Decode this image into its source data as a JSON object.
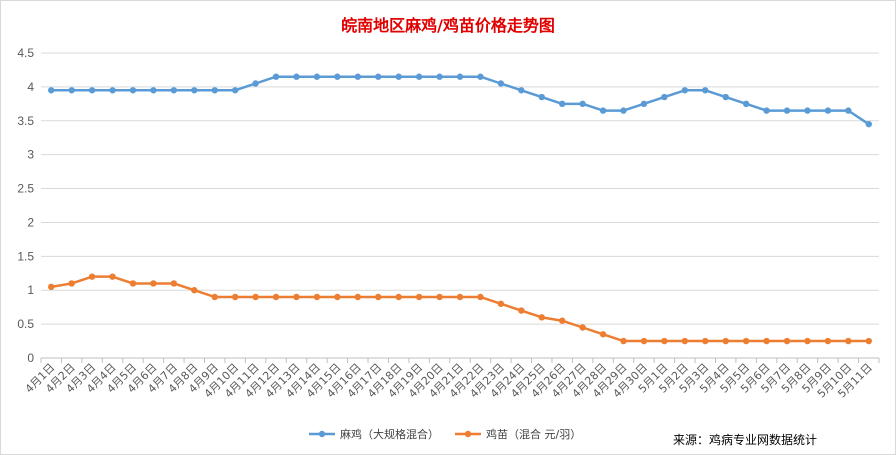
{
  "chart_data": {
    "type": "line",
    "title": "皖南地区麻鸡/鸡苗价格走势图",
    "source": "来源：鸡病专业网数据统计",
    "ylim": [
      0,
      4.5
    ],
    "yticks": [
      "0",
      "0.5",
      "1",
      "1.5",
      "2",
      "2.5",
      "3",
      "3.5",
      "4",
      "4.5"
    ],
    "grid": true,
    "legend_position": "bottom",
    "categories": [
      "4月1日",
      "4月2日",
      "4月3日",
      "4月4日",
      "4月5日",
      "4月6日",
      "4月7日",
      "4月8日",
      "4月9日",
      "4月10日",
      "4月11日",
      "4月12日",
      "4月13日",
      "4月14日",
      "4月15日",
      "4月16日",
      "4月17日",
      "4月18日",
      "4月19日",
      "4月20日",
      "4月21日",
      "4月22日",
      "4月23日",
      "4月24日",
      "4月25日",
      "4月26日",
      "4月27日",
      "4月28日",
      "4月29日",
      "4月30日",
      "5月1日",
      "5月2日",
      "5月3日",
      "5月4日",
      "5月5日",
      "5月6日",
      "5月7日",
      "5月8日",
      "5月9日",
      "5月10日",
      "5月11日"
    ],
    "series": [
      {
        "name": "麻鸡（大规格混合）",
        "color": "#5b9bd5",
        "values": [
          3.95,
          3.95,
          3.95,
          3.95,
          3.95,
          3.95,
          3.95,
          3.95,
          3.95,
          3.95,
          4.05,
          4.15,
          4.15,
          4.15,
          4.15,
          4.15,
          4.15,
          4.15,
          4.15,
          4.15,
          4.15,
          4.15,
          4.05,
          3.95,
          3.85,
          3.75,
          3.75,
          3.65,
          3.65,
          3.75,
          3.85,
          3.95,
          3.95,
          3.85,
          3.75,
          3.65,
          3.65,
          3.65,
          3.65,
          3.65,
          3.45
        ]
      },
      {
        "name": "鸡苗（混合 元/羽）",
        "color": "#ed7d31",
        "values": [
          1.05,
          1.1,
          1.2,
          1.2,
          1.1,
          1.1,
          1.1,
          1.0,
          0.9,
          0.9,
          0.9,
          0.9,
          0.9,
          0.9,
          0.9,
          0.9,
          0.9,
          0.9,
          0.9,
          0.9,
          0.9,
          0.9,
          0.8,
          0.7,
          0.6,
          0.55,
          0.45,
          0.35,
          0.25,
          0.25,
          0.25,
          0.25,
          0.25,
          0.25,
          0.25,
          0.25,
          0.25,
          0.25,
          0.25,
          0.25,
          0.25
        ]
      }
    ]
  }
}
